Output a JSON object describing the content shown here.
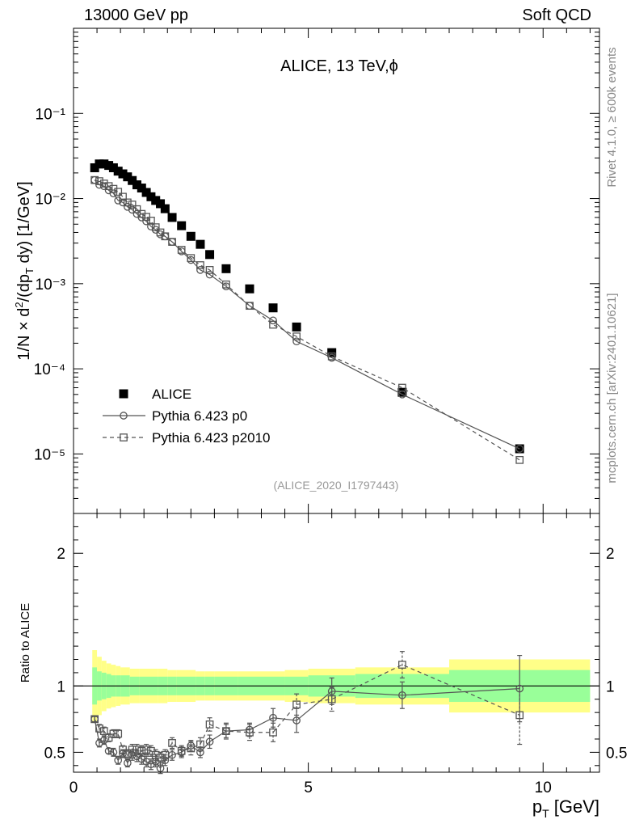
{
  "header": {
    "left": "13000 GeV pp",
    "right": "Soft QCD"
  },
  "side_labels": {
    "rivet": "Rivet 4.1.0, ≥ 600k events",
    "mcplots": "mcplots.cern.ch [arXiv:2401.10621]"
  },
  "colors": {
    "data": "#000000",
    "mc": "#555555",
    "band_outer": "#ffff88",
    "band_inner": "#99ff99"
  },
  "chart_data": [
    {
      "type": "scatter",
      "title": "ALICE, 13 TeV,ϕ",
      "ref_label": "(ALICE_2020_I1797443)",
      "ylabel": "1/N × d²/(dp_T dy) [1/GeV]",
      "xlabel": "",
      "yscale": "log",
      "xlim": [
        0,
        11.2
      ],
      "ylim": [
        2e-06,
        1.0
      ],
      "y_tick_labels": [
        "10⁻⁵",
        "10⁻⁴",
        "10⁻³",
        "10⁻²",
        "10⁻¹"
      ],
      "x": [
        0.45,
        0.55,
        0.65,
        0.75,
        0.85,
        0.95,
        1.05,
        1.15,
        1.25,
        1.35,
        1.45,
        1.55,
        1.65,
        1.75,
        1.85,
        1.95,
        2.1,
        2.3,
        2.5,
        2.7,
        2.9,
        3.25,
        3.75,
        4.25,
        4.75,
        5.5,
        7.0,
        9.5
      ],
      "series": [
        {
          "name": "ALICE",
          "marker": "filled-square",
          "values": [
            0.023,
            0.0255,
            0.0255,
            0.0245,
            0.023,
            0.021,
            0.0195,
            0.018,
            0.0163,
            0.0145,
            0.0133,
            0.0118,
            0.0105,
            0.0095,
            0.0087,
            0.0076,
            0.006,
            0.0048,
            0.0036,
            0.0029,
            0.0022,
            0.0015,
            0.00087,
            0.00052,
            0.00031,
            0.000155,
            5.3e-05,
            1.15e-05
          ]
        },
        {
          "name": "Pythia 6.423 p0",
          "marker": "open-circle",
          "line": "solid",
          "values": [
            0.0165,
            0.0145,
            0.014,
            0.0125,
            0.0115,
            0.0095,
            0.009,
            0.008,
            0.0074,
            0.0066,
            0.006,
            0.0054,
            0.0047,
            0.0043,
            0.0038,
            0.0036,
            0.0031,
            0.0024,
            0.0019,
            0.00145,
            0.00128,
            0.00093,
            0.00055,
            0.00037,
            0.00021,
            0.000135,
            5e-05,
            1.15e-05
          ]
        },
        {
          "name": "Pythia 6.423 p2010",
          "marker": "open-square",
          "line": "dashed",
          "values": [
            0.0165,
            0.016,
            0.015,
            0.014,
            0.013,
            0.012,
            0.0105,
            0.009,
            0.0085,
            0.0075,
            0.0066,
            0.0061,
            0.0055,
            0.0046,
            0.004,
            0.0036,
            0.0031,
            0.0025,
            0.002,
            0.00165,
            0.00145,
            0.00098,
            0.00055,
            0.00033,
            0.00024,
            0.00014,
            6e-05,
            8.5e-06
          ]
        }
      ]
    },
    {
      "type": "scatter",
      "title": "",
      "ylabel": "Ratio to ALICE",
      "xlabel": "p_T [GeV]",
      "xlim": [
        0,
        11.2
      ],
      "ylim": [
        0.35,
        2.3
      ],
      "x_tick_labels": [
        "0",
        "5",
        "10"
      ],
      "y_tick_labels": [
        "0.5",
        "1",
        "2"
      ],
      "x": [
        0.45,
        0.55,
        0.65,
        0.75,
        0.85,
        0.95,
        1.05,
        1.15,
        1.25,
        1.35,
        1.45,
        1.55,
        1.65,
        1.75,
        1.85,
        1.95,
        2.1,
        2.3,
        2.5,
        2.7,
        2.9,
        3.25,
        3.75,
        4.25,
        4.75,
        5.5,
        7.0,
        9.5
      ],
      "bands": {
        "edges": [
          0.4,
          0.5,
          0.6,
          0.7,
          0.8,
          0.9,
          1.0,
          1.2,
          1.4,
          1.6,
          1.8,
          2.0,
          2.2,
          2.4,
          2.6,
          2.8,
          3.0,
          3.5,
          4.0,
          4.5,
          5.0,
          6.0,
          8.0,
          11.0
        ],
        "outer_half_width": [
          0.27,
          0.22,
          0.19,
          0.17,
          0.16,
          0.15,
          0.14,
          0.13,
          0.13,
          0.13,
          0.13,
          0.12,
          0.12,
          0.12,
          0.11,
          0.11,
          0.11,
          0.11,
          0.11,
          0.12,
          0.13,
          0.14,
          0.2
        ],
        "inner_half_width": [
          0.14,
          0.11,
          0.1,
          0.09,
          0.08,
          0.08,
          0.08,
          0.07,
          0.07,
          0.07,
          0.07,
          0.07,
          0.07,
          0.07,
          0.07,
          0.07,
          0.07,
          0.07,
          0.07,
          0.07,
          0.08,
          0.09,
          0.12
        ]
      },
      "series": [
        {
          "name": "Pythia 6.423 p0",
          "marker": "open-circle",
          "line": "solid",
          "values": [
            0.75,
            0.57,
            0.59,
            0.51,
            0.5,
            0.44,
            0.49,
            0.42,
            0.48,
            0.47,
            0.45,
            0.43,
            0.41,
            0.43,
            0.38,
            0.44,
            0.48,
            0.5,
            0.55,
            0.5,
            0.58,
            0.66,
            0.67,
            0.76,
            0.74,
            0.96,
            0.93,
            0.98
          ],
          "errors": [
            0.02,
            0.03,
            0.03,
            0.02,
            0.03,
            0.03,
            0.03,
            0.03,
            0.04,
            0.04,
            0.04,
            0.04,
            0.04,
            0.04,
            0.04,
            0.04,
            0.04,
            0.04,
            0.04,
            0.04,
            0.05,
            0.05,
            0.05,
            0.07,
            0.09,
            0.1,
            0.1,
            0.25
          ]
        },
        {
          "name": "Pythia 6.423 p2010",
          "marker": "open-square",
          "line": "dashed",
          "values": [
            0.75,
            0.68,
            0.66,
            0.61,
            0.64,
            0.64,
            0.52,
            0.49,
            0.52,
            0.52,
            0.51,
            0.52,
            0.51,
            0.48,
            0.46,
            0.48,
            0.57,
            0.51,
            0.53,
            0.56,
            0.71,
            0.66,
            0.65,
            0.65,
            0.86,
            0.9,
            1.16,
            0.78
          ],
          "errors": [
            0.02,
            0.03,
            0.03,
            0.03,
            0.03,
            0.03,
            0.03,
            0.03,
            0.04,
            0.04,
            0.04,
            0.04,
            0.04,
            0.04,
            0.04,
            0.04,
            0.04,
            0.04,
            0.05,
            0.05,
            0.05,
            0.06,
            0.06,
            0.07,
            0.08,
            0.09,
            0.1,
            0.22
          ]
        }
      ]
    }
  ]
}
